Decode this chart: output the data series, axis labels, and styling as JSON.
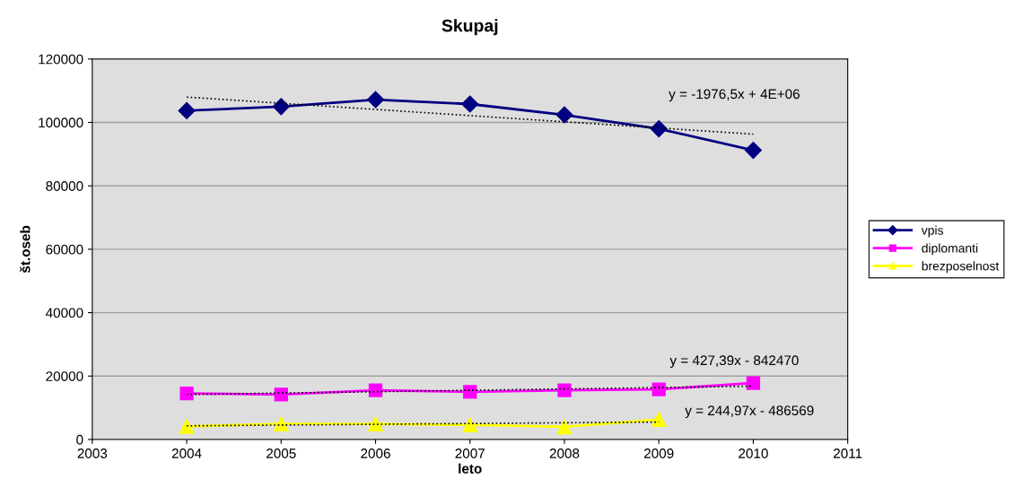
{
  "chart_data": {
    "type": "line",
    "title": "Skupaj",
    "xlabel": "leto",
    "ylabel": "št.oseb",
    "xlim": [
      2003,
      2011
    ],
    "xticks": [
      2003,
      2004,
      2005,
      2006,
      2007,
      2008,
      2009,
      2010,
      2011
    ],
    "ylim": [
      0,
      120000
    ],
    "yticks": [
      0,
      20000,
      40000,
      60000,
      80000,
      100000,
      120000
    ],
    "grid": "y",
    "legend": "right",
    "series": [
      {
        "name": "vpis",
        "color": "#000080",
        "marker": "diamond",
        "x": [
          2004,
          2005,
          2006,
          2007,
          2008,
          2009,
          2010
        ],
        "values": [
          103700,
          105000,
          107200,
          105800,
          102400,
          98000,
          91200
        ]
      },
      {
        "name": "diplomanti",
        "color": "#ff00ff",
        "marker": "square",
        "x": [
          2004,
          2005,
          2006,
          2007,
          2008,
          2009,
          2010
        ],
        "values": [
          14500,
          14200,
          15500,
          15000,
          15500,
          15800,
          17800
        ]
      },
      {
        "name": "brezposelnost",
        "color": "#ffff00",
        "marker": "triangle",
        "x": [
          2004,
          2005,
          2006,
          2007,
          2008,
          2009
        ],
        "values": [
          4100,
          4900,
          4900,
          4600,
          4000,
          6300
        ]
      },
      {
        "type": "line",
        "color": "#000000",
        "line_style": "dotted",
        "marker": "none",
        "x": [
          2004,
          2010
        ],
        "values": [
          108000,
          96300
        ]
      },
      {
        "type": "line",
        "color": "#000000",
        "line_style": "dotted",
        "marker": "none",
        "x": [
          2004,
          2010
        ],
        "values": [
          14200,
          16800
        ]
      },
      {
        "type": "line",
        "color": "#000000",
        "line_style": "dotted",
        "marker": "none",
        "x": [
          2004,
          2009
        ],
        "values": [
          4300,
          5500
        ]
      }
    ],
    "annotations": [
      "y = -1976,5x + 4E+06",
      "y = 427,39x - 842470",
      "y = 244,97x - 486569"
    ]
  }
}
